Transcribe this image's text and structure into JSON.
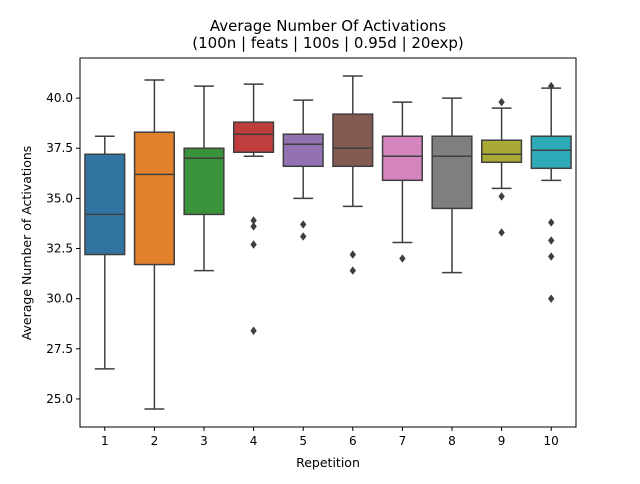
{
  "chart_data": {
    "type": "box",
    "title": "Average Number Of Activations\n(100n | feats | 100s | 0.95d | 20exp)",
    "title_lines": [
      "Average Number Of Activations",
      "(100n | feats | 100s | 0.95d | 20exp)"
    ],
    "xlabel": "Repetition",
    "ylabel": "Average Number of Activations",
    "ylim": [
      23.6,
      42.0
    ],
    "yticks": [
      25.0,
      27.5,
      30.0,
      32.5,
      35.0,
      37.5,
      40.0
    ],
    "ytick_labels": [
      "25.0",
      "27.5",
      "30.0",
      "32.5",
      "35.0",
      "37.5",
      "40.0"
    ],
    "categories": [
      "1",
      "2",
      "3",
      "4",
      "5",
      "6",
      "7",
      "8",
      "9",
      "10"
    ],
    "grid": false,
    "legend": "none",
    "boxes": [
      {
        "category": "1",
        "color": "#3274a1",
        "whisker_low": 26.5,
        "q1": 32.2,
        "median": 34.2,
        "q3": 37.2,
        "whisker_high": 38.1,
        "outliers": []
      },
      {
        "category": "2",
        "color": "#e1812c",
        "whisker_low": 24.5,
        "q1": 31.7,
        "median": 36.2,
        "q3": 38.3,
        "whisker_high": 40.9,
        "outliers": []
      },
      {
        "category": "3",
        "color": "#3a923a",
        "whisker_low": 31.4,
        "q1": 34.2,
        "median": 37.0,
        "q3": 37.5,
        "whisker_high": 40.6,
        "outliers": []
      },
      {
        "category": "4",
        "color": "#c03d3e",
        "whisker_low": 37.1,
        "q1": 37.3,
        "median": 38.2,
        "q3": 38.8,
        "whisker_high": 40.7,
        "outliers": [
          33.9,
          33.6,
          32.7,
          28.4
        ]
      },
      {
        "category": "5",
        "color": "#9372b2",
        "whisker_low": 35.0,
        "q1": 36.6,
        "median": 37.7,
        "q3": 38.2,
        "whisker_high": 39.9,
        "outliers": [
          33.7,
          33.1
        ]
      },
      {
        "category": "6",
        "color": "#845b53",
        "whisker_low": 34.6,
        "q1": 36.6,
        "median": 37.5,
        "q3": 39.2,
        "whisker_high": 41.1,
        "outliers": [
          32.2,
          31.4
        ]
      },
      {
        "category": "7",
        "color": "#d684bd",
        "whisker_low": 32.8,
        "q1": 35.9,
        "median": 37.1,
        "q3": 38.1,
        "whisker_high": 39.8,
        "outliers": [
          32.0
        ]
      },
      {
        "category": "8",
        "color": "#7f7f7f",
        "whisker_low": 31.3,
        "q1": 34.5,
        "median": 37.1,
        "q3": 38.1,
        "whisker_high": 40.0,
        "outliers": []
      },
      {
        "category": "9",
        "color": "#a9aa35",
        "whisker_low": 35.5,
        "q1": 36.8,
        "median": 37.2,
        "q3": 37.9,
        "whisker_high": 39.5,
        "outliers": [
          39.8,
          35.1,
          33.3
        ]
      },
      {
        "category": "10",
        "color": "#2eabb8",
        "whisker_low": 35.9,
        "q1": 36.5,
        "median": 37.4,
        "q3": 38.1,
        "whisker_high": 40.5,
        "outliers": [
          40.6,
          33.8,
          32.9,
          32.1,
          30.0
        ]
      }
    ]
  }
}
